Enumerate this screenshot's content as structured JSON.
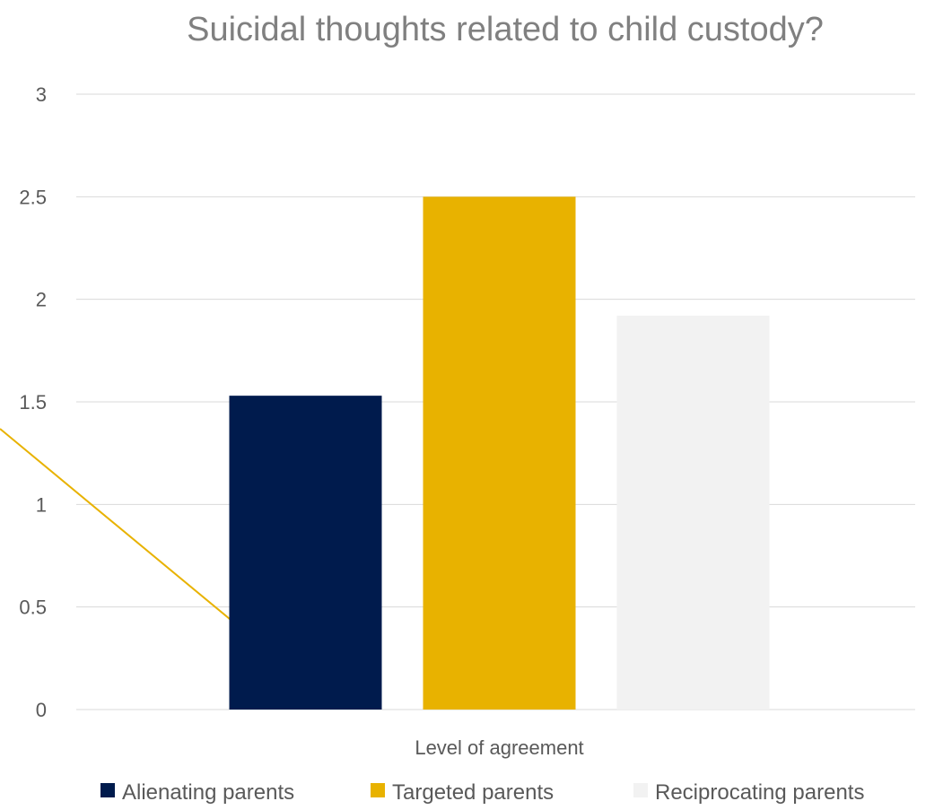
{
  "chart_data": {
    "type": "bar",
    "title": "Suicidal thoughts related to child custody?",
    "xlabel": "",
    "ylabel": "",
    "categories": [
      "Level of agreement"
    ],
    "series": [
      {
        "name": "Alienating parents",
        "values": [
          1.53
        ],
        "color": "#001b4d"
      },
      {
        "name": "Targeted parents",
        "values": [
          2.5
        ],
        "color": "#e8b200"
      },
      {
        "name": "Reciprocating parents",
        "values": [
          1.92
        ],
        "color": "#f2f2f2"
      }
    ],
    "ylim": [
      0,
      3
    ],
    "yticks": [
      "0",
      "0.5",
      "1",
      "1.5",
      "2",
      "2.5",
      "3"
    ],
    "grid": true,
    "legend": "bottom"
  }
}
